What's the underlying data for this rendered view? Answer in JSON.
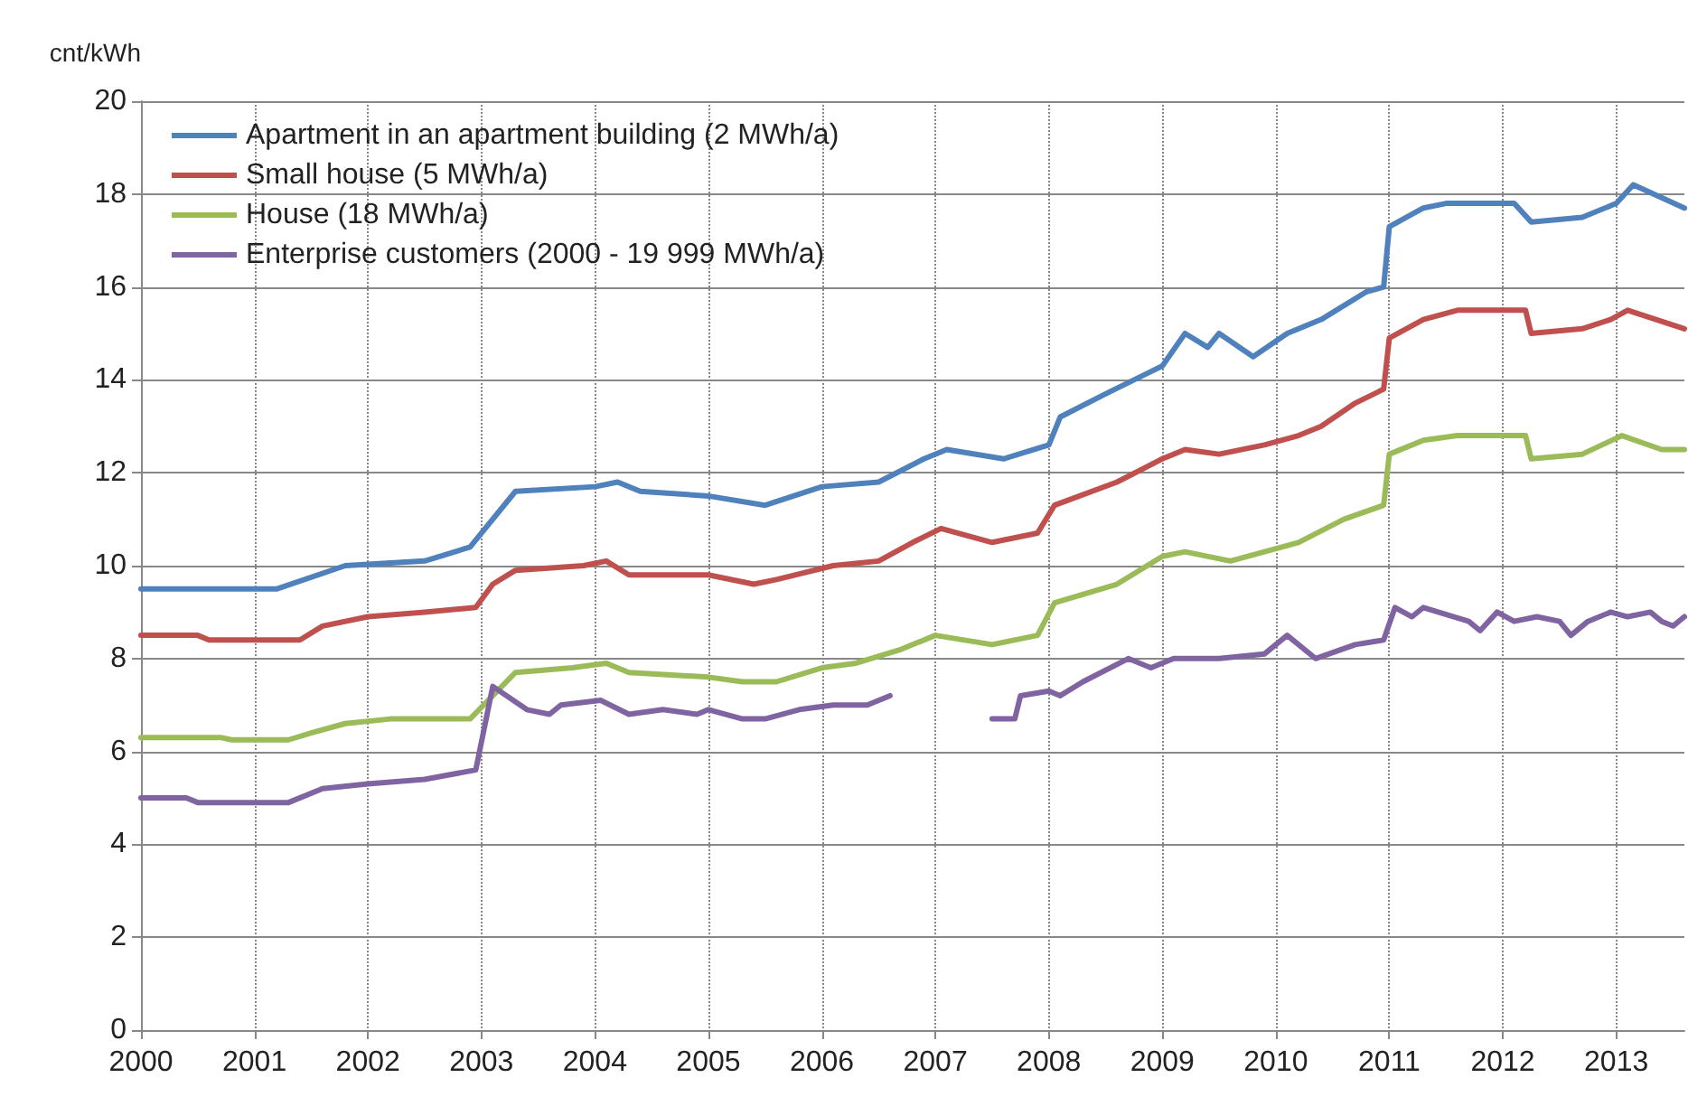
{
  "chart_data": {
    "type": "line",
    "ylabel": "cnt/kWh",
    "xlim": [
      2000,
      2013.6
    ],
    "xticks": [
      2000,
      2001,
      2002,
      2003,
      2004,
      2005,
      2006,
      2007,
      2008,
      2009,
      2010,
      2011,
      2012,
      2013
    ],
    "ylim": [
      0,
      20
    ],
    "yticks": [
      0,
      2,
      4,
      6,
      8,
      10,
      12,
      14,
      16,
      18,
      20
    ],
    "grid": true,
    "legend": "top left",
    "marker": "none",
    "line_style": "solid",
    "series": [
      {
        "name": "Apartment in an apartment building (2 MWh/a)",
        "color": "#4f81bd",
        "x": [
          2000,
          2001.2,
          2001.8,
          2002.5,
          2002.9,
          2003.3,
          2004.0,
          2004.2,
          2004.4,
          2005.0,
          2005.5,
          2006.0,
          2006.5,
          2006.9,
          2007.1,
          2007.6,
          2008.0,
          2008.1,
          2008.5,
          2009.0,
          2009.2,
          2009.4,
          2009.5,
          2009.8,
          2010.1,
          2010.4,
          2010.8,
          2010.95,
          2011.0,
          2011.3,
          2011.5,
          2012.1,
          2012.25,
          2012.7,
          2013.0,
          2013.15,
          2013.6
        ],
        "values": [
          9.5,
          9.5,
          10.0,
          10.1,
          10.4,
          11.6,
          11.7,
          11.8,
          11.6,
          11.5,
          11.3,
          11.7,
          11.8,
          12.3,
          12.5,
          12.3,
          12.6,
          13.2,
          13.7,
          14.3,
          15.0,
          14.7,
          15.0,
          14.5,
          15.0,
          15.3,
          15.9,
          16.0,
          17.3,
          17.7,
          17.8,
          17.8,
          17.4,
          17.5,
          17.8,
          18.2,
          17.7
        ]
      },
      {
        "name": "Small house (5 MWh/a)",
        "color": "#c0504d",
        "x": [
          2000,
          2000.5,
          2000.6,
          2001.4,
          2001.6,
          2002.0,
          2002.5,
          2002.95,
          2003.1,
          2003.3,
          2003.9,
          2004.1,
          2004.3,
          2005.0,
          2005.4,
          2005.6,
          2006.1,
          2006.5,
          2006.8,
          2007.05,
          2007.5,
          2007.9,
          2008.05,
          2008.6,
          2009.0,
          2009.2,
          2009.5,
          2009.9,
          2010.2,
          2010.4,
          2010.7,
          2010.95,
          2011.0,
          2011.3,
          2011.6,
          2012.2,
          2012.25,
          2012.7,
          2012.95,
          2013.1,
          2013.6
        ],
        "values": [
          8.5,
          8.5,
          8.4,
          8.4,
          8.7,
          8.9,
          9.0,
          9.1,
          9.6,
          9.9,
          10.0,
          10.1,
          9.8,
          9.8,
          9.6,
          9.7,
          10.0,
          10.1,
          10.5,
          10.8,
          10.5,
          10.7,
          11.3,
          11.8,
          12.3,
          12.5,
          12.4,
          12.6,
          12.8,
          13.0,
          13.5,
          13.8,
          14.9,
          15.3,
          15.5,
          15.5,
          15.0,
          15.1,
          15.3,
          15.5,
          15.1
        ]
      },
      {
        "name": "House (18 MWh/a)",
        "color": "#9bbb59",
        "x": [
          2000,
          2000.7,
          2000.8,
          2001.3,
          2001.5,
          2001.8,
          2002.2,
          2002.9,
          2003.1,
          2003.3,
          2003.8,
          2004.1,
          2004.3,
          2005.0,
          2005.3,
          2005.6,
          2006.0,
          2006.3,
          2006.7,
          2007.0,
          2007.5,
          2007.9,
          2008.05,
          2008.6,
          2009.0,
          2009.2,
          2009.6,
          2009.9,
          2010.2,
          2010.6,
          2010.95,
          2011.0,
          2011.3,
          2011.6,
          2012.2,
          2012.25,
          2012.7,
          2013.05,
          2013.4,
          2013.6
        ],
        "values": [
          6.3,
          6.3,
          6.25,
          6.25,
          6.4,
          6.6,
          6.7,
          6.7,
          7.2,
          7.7,
          7.8,
          7.9,
          7.7,
          7.6,
          7.5,
          7.5,
          7.8,
          7.9,
          8.2,
          8.5,
          8.3,
          8.5,
          9.2,
          9.6,
          10.2,
          10.3,
          10.1,
          10.3,
          10.5,
          11.0,
          11.3,
          12.4,
          12.7,
          12.8,
          12.8,
          12.3,
          12.4,
          12.8,
          12.5,
          12.5
        ]
      },
      {
        "name": "Enterprise customers (2000 - 19 999 MWh/a)",
        "color": "#8064a2",
        "x": [
          2000,
          2000.4,
          2000.5,
          2001.3,
          2001.6,
          2002.0,
          2002.5,
          2002.95,
          2003.1,
          2003.4,
          2003.6,
          2003.7,
          2004.05,
          2004.3,
          2004.6,
          2004.9,
          2005.0,
          2005.3,
          2005.5,
          2005.8,
          2006.1,
          2006.4,
          2006.6,
          2007.0,
          2007.5,
          2007.7,
          2007.75,
          2008.0,
          2008.1,
          2008.3,
          2008.7,
          2008.9,
          2009.1,
          2009.5,
          2009.9,
          2010.1,
          2010.35,
          2010.7,
          2010.95,
          2011.05,
          2011.2,
          2011.3,
          2011.7,
          2011.8,
          2011.95,
          2012.1,
          2012.3,
          2012.5,
          2012.6,
          2012.75,
          2012.95,
          2013.1,
          2013.3,
          2013.4,
          2013.5,
          2013.6
        ],
        "values": [
          5.0,
          5.0,
          4.9,
          4.9,
          5.2,
          5.3,
          5.4,
          5.6,
          7.4,
          6.9,
          6.8,
          7.0,
          7.1,
          6.8,
          6.9,
          6.8,
          6.9,
          6.7,
          6.7,
          6.9,
          7.0,
          7.0,
          7.2,
          null,
          6.7,
          6.7,
          7.2,
          7.3,
          7.2,
          7.5,
          8.0,
          7.8,
          8.0,
          8.0,
          8.1,
          8.5,
          8.0,
          8.3,
          8.4,
          9.1,
          8.9,
          9.1,
          8.8,
          8.6,
          9.0,
          8.8,
          8.9,
          8.8,
          8.5,
          8.8,
          9.0,
          8.9,
          9.0,
          8.8,
          8.7,
          8.9
        ]
      }
    ]
  }
}
